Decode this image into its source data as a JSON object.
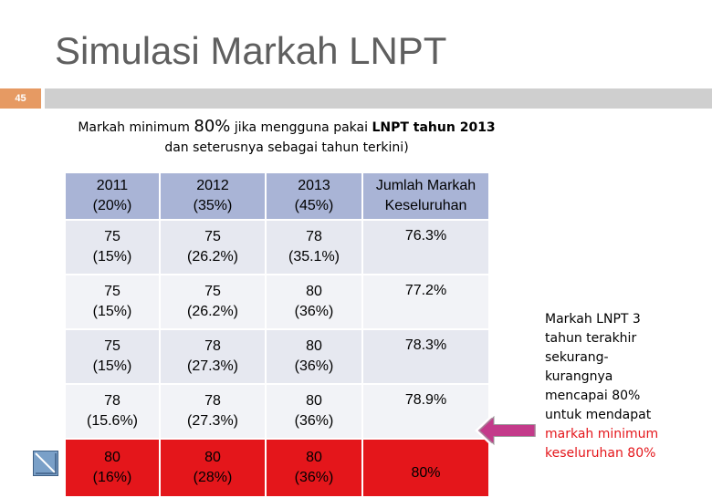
{
  "slide": {
    "title": "Simulasi Markah LNPT",
    "number": "45",
    "accent_color": "#e69a63"
  },
  "note": {
    "part1": "Markah minimum ",
    "part2": "80%",
    "part3": " jika mengguna pakai ",
    "part4": "LNPT tahun 2013",
    "part5": " dan seterusnya sebagai tahun terkini)"
  },
  "table": {
    "headers": [
      [
        "2011",
        "(20%)"
      ],
      [
        "2012",
        "(35%)"
      ],
      [
        "2013",
        "(45%)"
      ],
      [
        "Jumlah Markah",
        "Keseluruhan"
      ]
    ],
    "rows": [
      {
        "cells": [
          [
            "75",
            "(15%)"
          ],
          [
            "75",
            "(26.2%)"
          ],
          [
            "78",
            "(35.1%)"
          ]
        ],
        "total": "76.3%"
      },
      {
        "cells": [
          [
            "75",
            "(15%)"
          ],
          [
            "75",
            "(26.2%)"
          ],
          [
            "80",
            "(36%)"
          ]
        ],
        "total": "77.2%"
      },
      {
        "cells": [
          [
            "75",
            "(15%)"
          ],
          [
            "78",
            "(27.3%)"
          ],
          [
            "80",
            "(36%)"
          ]
        ],
        "total": "78.3%"
      },
      {
        "cells": [
          [
            "78",
            "(15.6%)"
          ],
          [
            "78",
            "(27.3%)"
          ],
          [
            "80",
            "(36%)"
          ]
        ],
        "total": "78.9%"
      },
      {
        "cells": [
          [
            "80",
            "(16%)"
          ],
          [
            "80",
            "(28%)"
          ],
          [
            "80",
            "(36%)"
          ]
        ],
        "total": "80%"
      }
    ],
    "highlight_color": "#e4161b"
  },
  "sidebar": {
    "line1": "Markah LNPT 3",
    "line2": "tahun terakhir",
    "line3": "sekurang-",
    "line4": "kurangnya",
    "line5": "mencapai 80%",
    "line6": "untuk mendapat",
    "line7": "markah minimum",
    "line8": "keseluruhan 80%"
  },
  "icons": {
    "arrow": "left-arrow-icon",
    "nav": "nav-icon"
  }
}
